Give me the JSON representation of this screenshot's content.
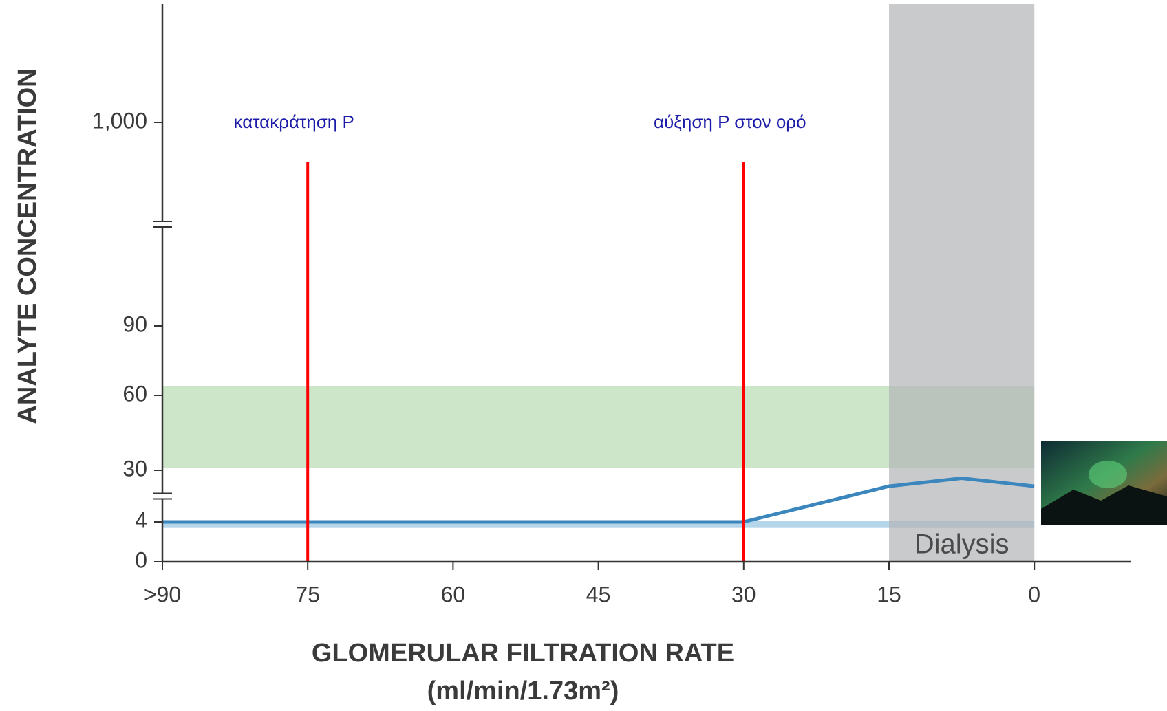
{
  "chart_data": {
    "type": "line",
    "y_label": "ANALYTE CONCENTRATION",
    "x_label": [
      "GLOMERULAR FILTRATION RATE",
      "(ml/min/1.73m²)"
    ],
    "x": [
      90,
      30,
      20,
      15,
      7.5,
      0
    ],
    "series": [
      {
        "color": "#3b86bd",
        "values": [
          4,
          4,
          16,
          22,
          26,
          22
        ]
      }
    ],
    "xlim": [
      90,
      -10
    ],
    "xticks": [
      {
        "value": 90,
        "label": ">90"
      },
      75,
      60,
      45,
      30,
      15,
      0
    ],
    "ylim": [
      0,
      1000
    ],
    "yticks": [
      0,
      4,
      30,
      60,
      90,
      {
        "value": 1000,
        "label": "1,000"
      }
    ],
    "y_breaks": [
      [
        4,
        30
      ],
      [
        90,
        1000
      ]
    ],
    "bands": [
      {
        "y": [
          31,
          64
        ],
        "x": [
          90,
          0
        ],
        "color": "#cde6c9"
      },
      {
        "y": [
          3.4,
          4.6
        ],
        "x": [
          90,
          0
        ],
        "color": "#b5d5ea"
      }
    ],
    "shaded_regions": [
      {
        "x": [
          15,
          0
        ],
        "label": "Dialysis",
        "color": "#b4b5b8"
      }
    ],
    "vlines": [
      {
        "x": 75,
        "label": "κατακράτηση P",
        "color": "#ff0000"
      },
      {
        "x": 30,
        "label": "αύξηση P στον ορό",
        "color": "#ff0000"
      }
    ]
  }
}
